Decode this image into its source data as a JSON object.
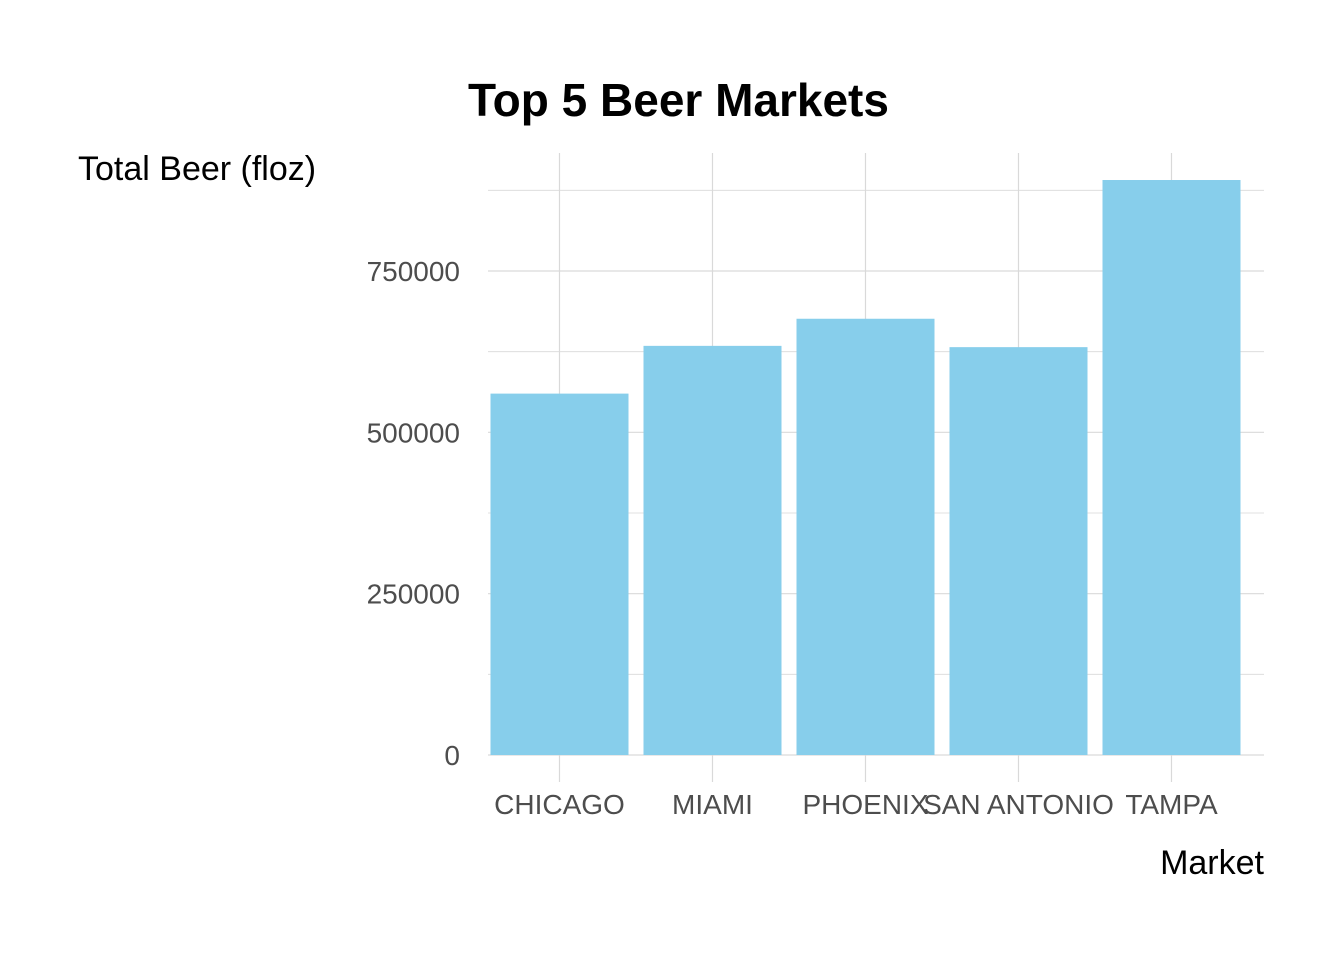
{
  "chart_data": {
    "type": "bar",
    "title": "Top 5 Beer Markets",
    "xlabel": "Market",
    "ylabel": "Total Beer (floz)",
    "categories": [
      "CHICAGO",
      "MIAMI",
      "PHOENIX",
      "SAN ANTONIO",
      "TAMPA"
    ],
    "values": [
      560000,
      634000,
      676000,
      632000,
      891000
    ],
    "ylim": [
      0,
      940000
    ],
    "yticks": [
      0,
      250000,
      500000,
      750000
    ],
    "ytick_labels": [
      "0",
      "250000",
      "500000",
      "750000"
    ],
    "grid": true,
    "bar_color": "#87CEEB",
    "grid_color": "#d9d9d9"
  }
}
